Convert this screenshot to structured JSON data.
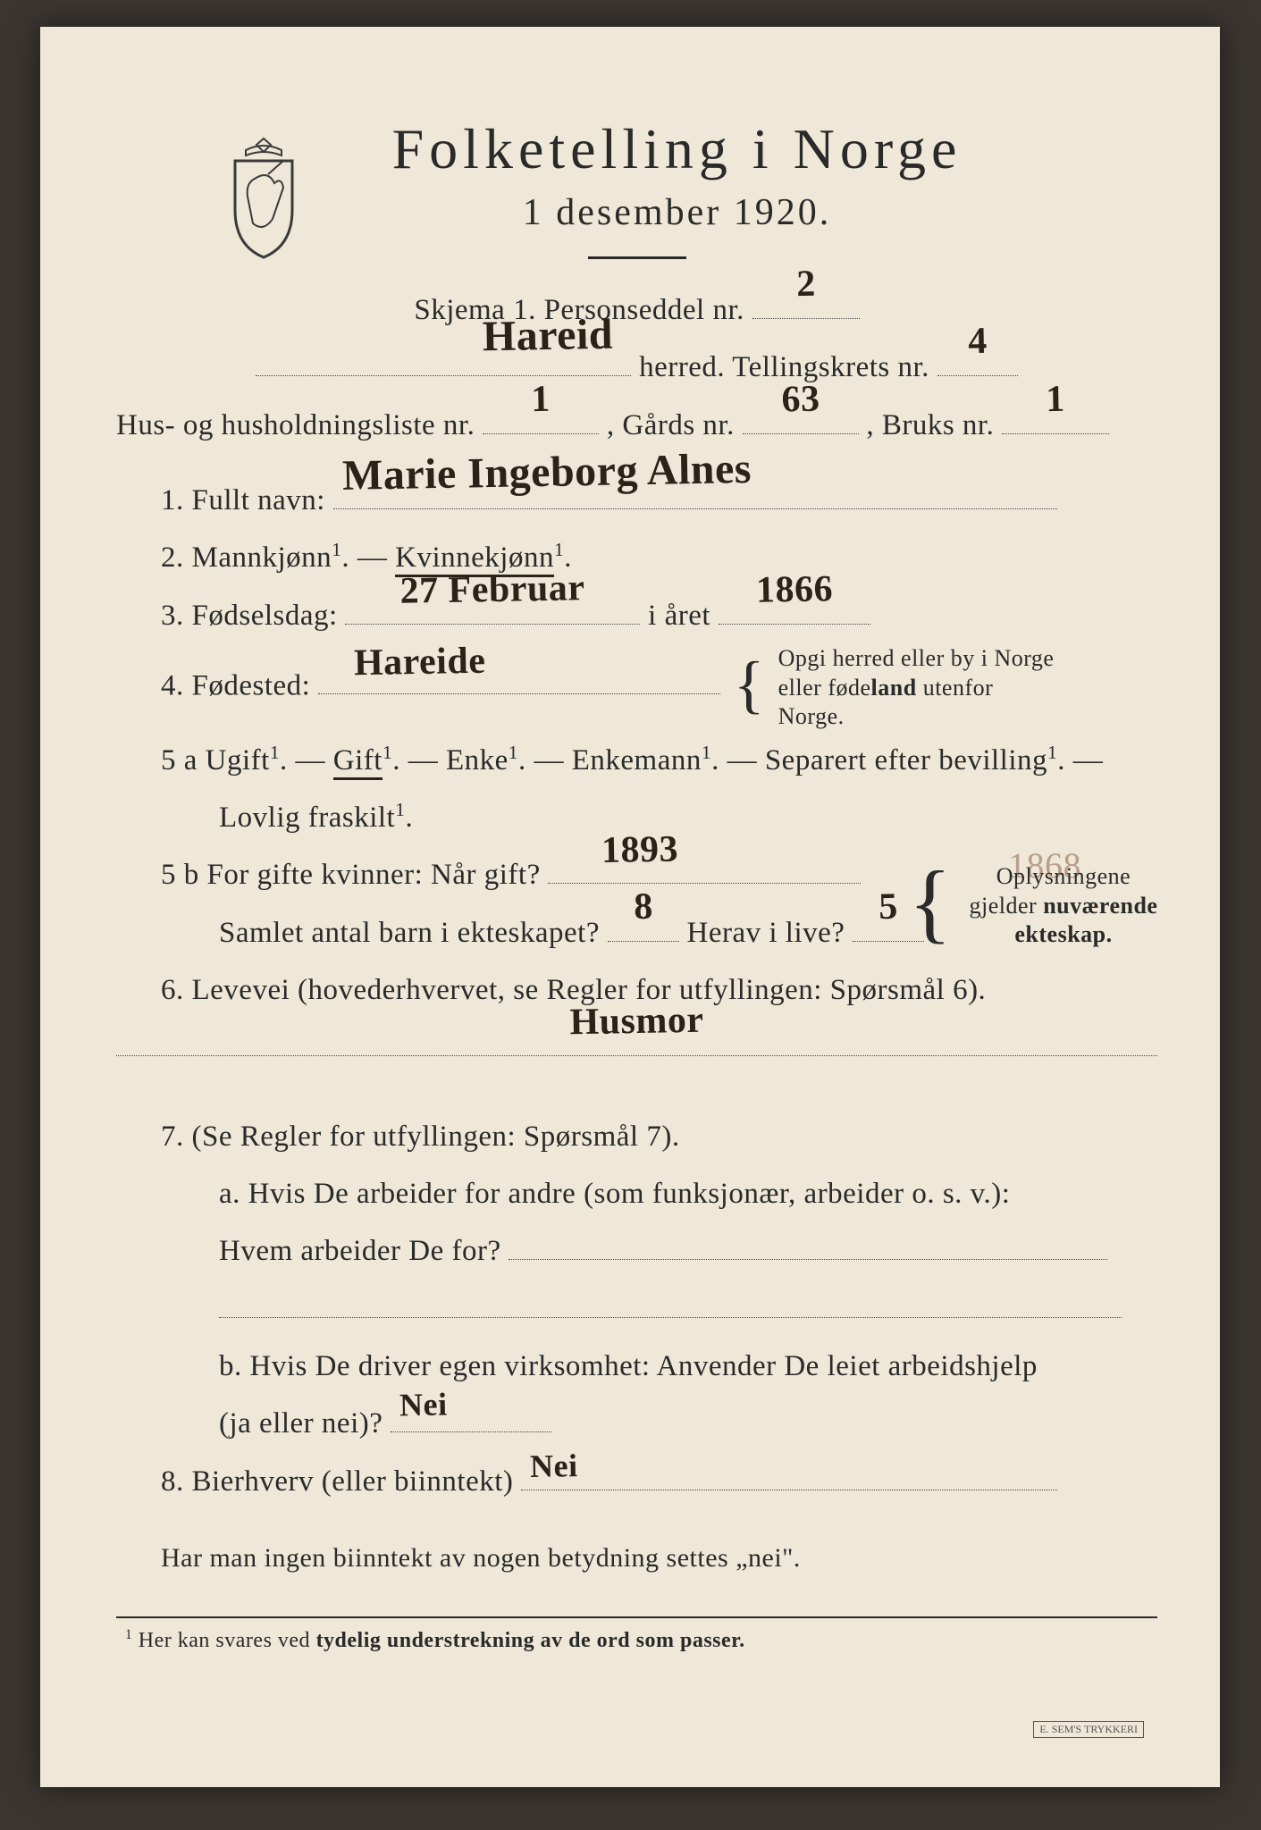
{
  "colors": {
    "paper_bg": "#efe8d8",
    "outer_bg": "#3a3530",
    "print_text": "#2a2a2a",
    "handwriting": "#2b2218",
    "pencil": "#b79f8a"
  },
  "header": {
    "title_line1": "Folketelling i Norge",
    "title_line2": "1 desember 1920."
  },
  "form_meta": {
    "skjema_label": "Skjema 1.   Personseddel nr.",
    "skjema_value": "2",
    "herred_value": "Hareid",
    "herred_label": "herred.   Tellingskrets nr.",
    "tellingskrets_value": "4",
    "hus_label": "Hus- og husholdningsliste nr.",
    "hus_value": "1",
    "gards_label": ",  Gårds nr.",
    "gards_value": "63",
    "bruks_label": ",  Bruks nr.",
    "bruks_value": "1"
  },
  "q1": {
    "label": "1.   Fullt navn:",
    "value": "Marie Ingeborg   Alnes"
  },
  "q2": {
    "text_a": "2.   ",
    "opt_mann": "Mannkjønn",
    "dash": " — ",
    "opt_kvinne": "Kvinnekjønn",
    "sup": "1",
    "selected": "kvinne"
  },
  "q3": {
    "label": "3.   Fødselsdag:",
    "day_value": "27 Februar",
    "mid": " i året ",
    "year_value": "1866"
  },
  "q4": {
    "label": "4.   Fødested:",
    "value": "Hareide",
    "note": "Opgi herred eller by i Norge eller føde<b>land</b> utenfor Norge."
  },
  "q5a": {
    "lead": "5 a  ",
    "opts": [
      "Ugift",
      "Gift",
      "Enke",
      "Enkemann",
      "Separert efter bevilling",
      "Lovlig fraskilt"
    ],
    "sup": "1",
    "selected_index": 1
  },
  "pencil_year": "1868",
  "q5b": {
    "lead": "5 b  For gifte kvinner:  Når gift?",
    "year_value": "1893",
    "line2a": "Samlet antal barn i ekteskapet?",
    "barn_value": "8",
    "line2b": "Herav i live?",
    "live_value": "5",
    "note": "Oplysningene gjelder <b>nuværende ekteskap.</b>"
  },
  "q6": {
    "label": "6.   Levevei  (hovederhvervet, se Regler for utfyllingen:   Spørsmål 6).",
    "value": "Husmor"
  },
  "q7": {
    "label": "7.   (Se Regler for utfyllingen:   Spørsmål 7).",
    "a1": "a.   Hvis De arbeider for andre (som funksjonær, arbeider o. s. v.):",
    "a2": "Hvem arbeider De for?",
    "a_value": "",
    "b1": "b.   Hvis De driver egen virksomhet:  Anvender De leiet arbeidshjelp",
    "b2": "(ja eller nei)?",
    "b_value": "Nei"
  },
  "q8": {
    "label": "8.   Bierhverv (eller biinntekt)",
    "value": "Nei"
  },
  "bottom_note": "Har man ingen biinntekt av nogen betydning settes „nei\".",
  "footnote": "¹  Her kan svares ved tydelig understrekning av de ord som passer.",
  "stamp": "E. SEM'S TRYKKERI"
}
